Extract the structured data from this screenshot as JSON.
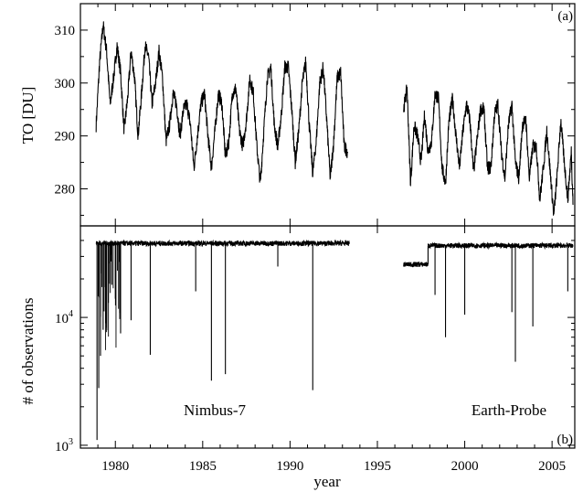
{
  "chart_data": [
    {
      "panel_label": "(a)",
      "type": "line",
      "ylabel": "TO  [DU]",
      "xlabel": "",
      "xlim": [
        1978,
        2006.3
      ],
      "ylim": [
        273,
        315
      ],
      "yticks": [
        280,
        290,
        300,
        310
      ],
      "yticklabels": [
        "280",
        "290",
        "300",
        "310"
      ],
      "series": [
        {
          "segments": [
            {
              "x": [
                1978.9,
                1979.1,
                1979.3,
                1979.5,
                1979.7,
                1979.9,
                1980.1,
                1980.3,
                1980.5,
                1980.7,
                1980.9,
                1981.1,
                1981.3,
                1981.5,
                1981.7,
                1981.9,
                1982.1,
                1982.3,
                1982.5,
                1982.7,
                1982.9,
                1983.1,
                1983.3,
                1983.5,
                1983.7,
                1983.9,
                1984.1,
                1984.3,
                1984.5,
                1984.7,
                1984.9,
                1985.1,
                1985.3,
                1985.5,
                1985.7,
                1985.9,
                1986.1,
                1986.3,
                1986.5,
                1986.7,
                1986.9,
                1987.1,
                1987.3,
                1987.5,
                1987.7,
                1987.9,
                1988.1,
                1988.3,
                1988.5,
                1988.7,
                1988.9,
                1989.1,
                1989.3,
                1989.5,
                1989.7,
                1989.9,
                1990.1,
                1990.3,
                1990.5,
                1990.7,
                1990.9,
                1991.1,
                1991.3,
                1991.5,
                1991.7,
                1991.9,
                1992.1,
                1992.3,
                1992.5,
                1992.7,
                1992.9,
                1993.1,
                1993.3
              ],
              "y": [
                292,
                304,
                311,
                306,
                296,
                301,
                307,
                302,
                291,
                297,
                306,
                301,
                290,
                298,
                307,
                305,
                296,
                300,
                306,
                301,
                289,
                292,
                298,
                296,
                290,
                295,
                296,
                292,
                284,
                290,
                296,
                298,
                290,
                284,
                291,
                298,
                296,
                286,
                289,
                298,
                299,
                291,
                288,
                293,
                301,
                298,
                288,
                281,
                291,
                301,
                303,
                292,
                288,
                294,
                303,
                303,
                295,
                285,
                291,
                300,
                304,
                292,
                283,
                289,
                300,
                303,
                293,
                282,
                289,
                301,
                302,
                288,
                287
              ]
            },
            {
              "x": [
                1996.5,
                1996.7,
                1996.9,
                1997.1,
                1997.3,
                1997.5,
                1997.7,
                1997.9,
                1998.1,
                1998.3,
                1998.5,
                1998.7,
                1998.9,
                1999.1,
                1999.3,
                1999.5,
                1999.7,
                1999.9,
                2000.1,
                2000.3,
                2000.5,
                2000.7,
                2000.9,
                2001.1,
                2001.3,
                2001.5,
                2001.7,
                2001.9,
                2002.1,
                2002.3,
                2002.5,
                2002.7,
                2002.9,
                2003.1,
                2003.3,
                2003.5,
                2003.7,
                2003.9,
                2004.1,
                2004.3,
                2004.5,
                2004.7,
                2004.9,
                2005.1,
                2005.3,
                2005.5,
                2005.7,
                2005.9,
                2006.1,
                2006.2
              ],
              "y": [
                295,
                299,
                281,
                292,
                290,
                285,
                294,
                287,
                289,
                298,
                297,
                284,
                281,
                293,
                297,
                290,
                284,
                291,
                296,
                293,
                283,
                289,
                295,
                295,
                284,
                284,
                294,
                296,
                287,
                282,
                292,
                296,
                285,
                282,
                292,
                293,
                282,
                288,
                288,
                278,
                284,
                291,
                283,
                275,
                283,
                293,
                285,
                278,
                287,
                277
              ]
            }
          ]
        }
      ]
    },
    {
      "panel_label": "(b)",
      "type": "line",
      "ylabel": "# of observations",
      "xlabel": "year",
      "xlim": [
        1978,
        2006.3
      ],
      "ylim": [
        950,
        52000
      ],
      "yscale": "log",
      "yticks": [
        1000,
        10000
      ],
      "yticklabels": [
        {
          "base": "10",
          "exp": "3"
        },
        {
          "base": "10",
          "exp": "4"
        }
      ],
      "xticks": [
        1980,
        1985,
        1990,
        1995,
        2000,
        2005
      ],
      "xticklabels": [
        "1980",
        "1985",
        "1990",
        "1995",
        "2000",
        "2005"
      ],
      "annotations": [
        "Nimbus-7",
        "Earth-Probe"
      ],
      "series": [
        {
          "baselines": [
            {
              "x": [
                1978.9,
                1993.4
              ],
              "y": 38000
            },
            {
              "x": [
                1996.5,
                1997.9
              ],
              "y": 26000
            },
            {
              "x": [
                1997.9,
                2006.2
              ],
              "y": 36500
            }
          ],
          "dips": [
            {
              "x": 1978.95,
              "y": 1100
            },
            {
              "x": 1979.05,
              "y": 2800
            },
            {
              "x": 1979.15,
              "y": 5000
            },
            {
              "x": 1979.3,
              "y": 8000
            },
            {
              "x": 1979.45,
              "y": 9000
            },
            {
              "x": 1979.6,
              "y": 13000
            },
            {
              "x": 1979.8,
              "y": 18000
            },
            {
              "x": 1980.0,
              "y": 14000
            },
            {
              "x": 1980.3,
              "y": 7500
            },
            {
              "x": 1980.9,
              "y": 9500
            },
            {
              "x": 1982.0,
              "y": 5100
            },
            {
              "x": 1984.6,
              "y": 16000
            },
            {
              "x": 1985.5,
              "y": 3200
            },
            {
              "x": 1986.3,
              "y": 3600
            },
            {
              "x": 1989.3,
              "y": 25000
            },
            {
              "x": 1991.3,
              "y": 2700
            },
            {
              "x": 1998.3,
              "y": 15000
            },
            {
              "x": 1998.9,
              "y": 7000
            },
            {
              "x": 2000.0,
              "y": 10500
            },
            {
              "x": 2002.7,
              "y": 11000
            },
            {
              "x": 2002.9,
              "y": 4500
            },
            {
              "x": 2003.9,
              "y": 8500
            },
            {
              "x": 2005.9,
              "y": 16000
            }
          ]
        }
      ]
    }
  ]
}
